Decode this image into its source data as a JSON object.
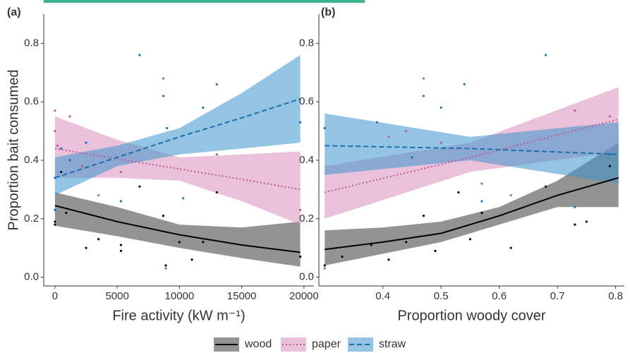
{
  "chart_data": [
    {
      "type": "ribbon-line",
      "panel_label": "(a)",
      "y_label": "Proportion bait consumed",
      "x_label": "Fire activity (kW m⁻¹)",
      "xlim": [
        -900,
        20800
      ],
      "ylim": [
        -0.03,
        0.9
      ],
      "xticks": [
        0,
        5000,
        10000,
        15000,
        20000
      ],
      "yticks": [
        {
          "value": 0,
          "label": "0.0"
        },
        0.2,
        0.4,
        0.6,
        0.8
      ],
      "series": [
        {
          "name": "wood",
          "color": "#000000",
          "fill": "#3a3a3a",
          "dash": "solid",
          "x": [
            0,
            5000,
            10000,
            15000,
            19700
          ],
          "values": [
            0.245,
            0.19,
            0.145,
            0.11,
            0.085
          ],
          "lower": [
            0.176,
            0.14,
            0.1,
            0.065,
            0.036
          ],
          "upper": [
            0.29,
            0.24,
            0.18,
            0.17,
            0.19
          ],
          "points_x": [
            0,
            0,
            500,
            900,
            2500,
            3500,
            5300,
            5300,
            6800,
            8700,
            8900,
            10000,
            11000,
            11900,
            13000,
            19700
          ],
          "points_y": [
            0.19,
            0.18,
            0.36,
            0.22,
            0.1,
            0.13,
            0.09,
            0.11,
            0.31,
            0.21,
            0.04,
            0.12,
            0.06,
            0.12,
            0.29,
            0.07
          ]
        },
        {
          "name": "paper",
          "color": "#c2588f",
          "fill": "#d98ebb",
          "dash": "dotted",
          "x": [
            0,
            5000,
            10000,
            15000,
            19700
          ],
          "values": [
            0.44,
            0.405,
            0.37,
            0.335,
            0.3
          ],
          "lower": [
            0.34,
            0.34,
            0.33,
            0.26,
            0.18
          ],
          "upper": [
            0.55,
            0.47,
            0.41,
            0.42,
            0.43
          ],
          "points_x": [
            0,
            0,
            200,
            1200,
            2200,
            3500,
            5300,
            8700,
            8900,
            13000,
            19700
          ],
          "points_y": [
            0.57,
            0.5,
            0.45,
            0.55,
            0.38,
            0.28,
            0.36,
            0.68,
            0.03,
            0.42,
            0.23
          ]
        },
        {
          "name": "straw",
          "color": "#1a6fb0",
          "fill": "#3d93cc",
          "dash": "dashed",
          "x": [
            0,
            5000,
            10000,
            15000,
            19700
          ],
          "values": [
            0.34,
            0.41,
            0.48,
            0.545,
            0.61
          ],
          "lower": [
            0.28,
            0.38,
            0.42,
            0.44,
            0.46
          ],
          "upper": [
            0.41,
            0.45,
            0.51,
            0.63,
            0.76
          ],
          "points_x": [
            0,
            0,
            500,
            1200,
            2500,
            5300,
            6800,
            8700,
            9000,
            10300,
            11900,
            13000,
            19700
          ],
          "points_y": [
            0.34,
            0.23,
            0.44,
            0.4,
            0.46,
            0.26,
            0.76,
            0.62,
            0.51,
            0.27,
            0.58,
            0.66,
            0.53
          ]
        }
      ]
    },
    {
      "type": "ribbon-line",
      "panel_label": "(b)",
      "x_label": "Proportion woody cover",
      "xlim": [
        0.29,
        0.815
      ],
      "ylim": [
        -0.03,
        0.9
      ],
      "xticks": [
        0.4,
        0.5,
        0.6,
        0.7,
        0.8
      ],
      "yticks": [
        {
          "value": 0,
          "label": "0.0"
        },
        0.2,
        0.4,
        0.6,
        0.8
      ],
      "series": [
        {
          "name": "wood",
          "color": "#000000",
          "fill": "#3a3a3a",
          "dash": "solid",
          "x": [
            0.3,
            0.4,
            0.5,
            0.6,
            0.7,
            0.805
          ],
          "values": [
            0.095,
            0.12,
            0.15,
            0.21,
            0.28,
            0.34
          ],
          "lower": [
            0.04,
            0.08,
            0.12,
            0.18,
            0.24,
            0.24
          ],
          "upper": [
            0.16,
            0.17,
            0.19,
            0.24,
            0.33,
            0.46
          ],
          "points_x": [
            0.3,
            0.33,
            0.38,
            0.41,
            0.44,
            0.47,
            0.49,
            0.53,
            0.55,
            0.57,
            0.62,
            0.68,
            0.73,
            0.75,
            0.79
          ],
          "points_y": [
            0.04,
            0.07,
            0.11,
            0.06,
            0.12,
            0.21,
            0.09,
            0.29,
            0.13,
            0.22,
            0.1,
            0.31,
            0.18,
            0.19,
            0.38
          ]
        },
        {
          "name": "paper",
          "color": "#c2588f",
          "fill": "#d98ebb",
          "dash": "dotted",
          "x": [
            0.3,
            0.55,
            0.805
          ],
          "values": [
            0.29,
            0.41,
            0.54
          ],
          "lower": [
            0.2,
            0.36,
            0.43
          ],
          "upper": [
            0.38,
            0.46,
            0.65
          ],
          "points_x": [
            0.3,
            0.41,
            0.44,
            0.47,
            0.5,
            0.57,
            0.62,
            0.73,
            0.79
          ],
          "points_y": [
            0.03,
            0.48,
            0.5,
            0.68,
            0.46,
            0.32,
            0.28,
            0.57,
            0.55
          ]
        },
        {
          "name": "straw",
          "color": "#1a6fb0",
          "fill": "#3d93cc",
          "dash": "dashed",
          "x": [
            0.3,
            0.55,
            0.805
          ],
          "values": [
            0.45,
            0.44,
            0.42
          ],
          "lower": [
            0.35,
            0.4,
            0.32
          ],
          "upper": [
            0.56,
            0.48,
            0.53
          ],
          "points_x": [
            0.3,
            0.39,
            0.45,
            0.47,
            0.5,
            0.54,
            0.57,
            0.68,
            0.73,
            0.79
          ],
          "points_y": [
            0.51,
            0.53,
            0.41,
            0.62,
            0.58,
            0.66,
            0.26,
            0.76,
            0.24,
            0.42
          ]
        }
      ]
    }
  ]
}
